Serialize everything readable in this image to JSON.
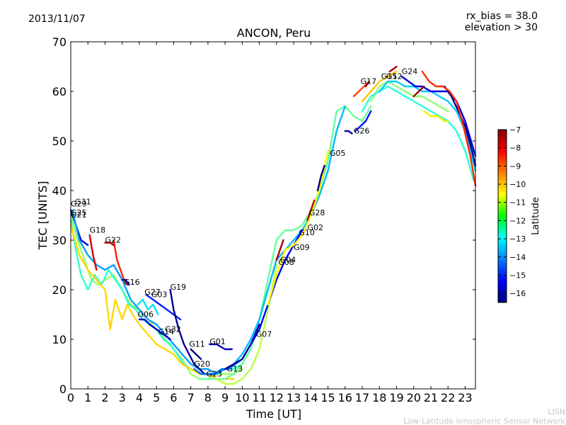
{
  "chart_data": {
    "type": "scatter",
    "title": "ANCON, Peru",
    "date": "2013/11/07",
    "info": [
      "rx_bias = 38.0",
      "elevation > 30"
    ],
    "xlabel": "Time [UT]",
    "ylabel": "TEC [UNITS]",
    "xlim": [
      0,
      23.6
    ],
    "ylim": [
      0,
      70
    ],
    "xticks": [
      0,
      1,
      2,
      3,
      4,
      5,
      6,
      7,
      8,
      9,
      10,
      11,
      12,
      13,
      14,
      15,
      16,
      17,
      18,
      19,
      20,
      21,
      22,
      23
    ],
    "yticks": [
      0,
      10,
      20,
      30,
      40,
      50,
      60,
      70
    ],
    "colorbar": {
      "label": "Latitude",
      "range": [
        -16.5,
        -7
      ],
      "ticks": [
        -7,
        -8,
        -9,
        -10,
        -11,
        -12,
        -13,
        -14,
        -15,
        -16
      ]
    },
    "satellite_labels": [
      {
        "name": "G31",
        "x": 0.25,
        "y": 37.2
      },
      {
        "name": "G29",
        "x": 0.0,
        "y": 36.8
      },
      {
        "name": "G25",
        "x": 0.0,
        "y": 35.0
      },
      {
        "name": "G21",
        "x": 0.0,
        "y": 34.6
      },
      {
        "name": "G18",
        "x": 1.1,
        "y": 31.5
      },
      {
        "name": "G22",
        "x": 2.0,
        "y": 29.5
      },
      {
        "name": "G16",
        "x": 3.1,
        "y": 21.0
      },
      {
        "name": "G27",
        "x": 4.3,
        "y": 19.0
      },
      {
        "name": "G03",
        "x": 4.7,
        "y": 18.5
      },
      {
        "name": "G19",
        "x": 5.8,
        "y": 20.0
      },
      {
        "name": "G06",
        "x": 3.9,
        "y": 14.5
      },
      {
        "name": "G14",
        "x": 5.1,
        "y": 11.0
      },
      {
        "name": "G32",
        "x": 5.5,
        "y": 11.5
      },
      {
        "name": "G11",
        "x": 6.9,
        "y": 8.5
      },
      {
        "name": "G01",
        "x": 8.1,
        "y": 9.0
      },
      {
        "name": "G20",
        "x": 7.2,
        "y": 4.5
      },
      {
        "name": "G23",
        "x": 7.9,
        "y": 2.5
      },
      {
        "name": "G13",
        "x": 9.1,
        "y": 3.5
      },
      {
        "name": "G07",
        "x": 10.8,
        "y": 10.5
      },
      {
        "name": "G04",
        "x": 12.2,
        "y": 25.5
      },
      {
        "name": "G08",
        "x": 12.1,
        "y": 25.0
      },
      {
        "name": "G09",
        "x": 13.0,
        "y": 28.0
      },
      {
        "name": "G10",
        "x": 13.3,
        "y": 31.0
      },
      {
        "name": "G02",
        "x": 13.8,
        "y": 32.0
      },
      {
        "name": "G28",
        "x": 13.9,
        "y": 35.0
      },
      {
        "name": "G05",
        "x": 15.1,
        "y": 47.0
      },
      {
        "name": "G26",
        "x": 16.5,
        "y": 51.5
      },
      {
        "name": "G17",
        "x": 16.9,
        "y": 61.5
      },
      {
        "name": "G15",
        "x": 18.1,
        "y": 62.5
      },
      {
        "name": "G12",
        "x": 18.4,
        "y": 62.5
      },
      {
        "name": "G24",
        "x": 19.3,
        "y": 63.5
      }
    ],
    "series": [
      {
        "name": "trace-01",
        "lat": -15.5,
        "x": [
          0.0,
          0.3,
          0.6,
          1.0
        ],
        "y": [
          36,
          33,
          30,
          29
        ]
      },
      {
        "name": "trace-02",
        "lat": -11.5,
        "x": [
          0.0,
          0.4,
          0.8,
          1.2,
          1.6,
          2.0,
          2.5,
          3.0,
          3.5,
          4.0,
          4.5,
          5.0,
          5.5,
          6.0,
          6.5,
          7.0,
          7.5,
          8.0,
          8.5,
          9.0,
          9.5,
          10.0
        ],
        "y": [
          35,
          30,
          26,
          22,
          21,
          22,
          23,
          20,
          17,
          16,
          14,
          12,
          10,
          8,
          6,
          3,
          2,
          2,
          3,
          3,
          3,
          4
        ]
      },
      {
        "name": "trace-03",
        "lat": -12.5,
        "x": [
          0.0,
          0.3,
          0.6,
          1.0,
          1.4,
          1.8,
          2.2,
          2.6,
          3.0,
          3.4,
          3.8,
          4.2,
          4.6,
          5.0,
          5.4,
          5.8,
          6.2,
          6.6,
          7.0,
          7.5,
          8.0,
          8.5,
          9.0,
          9.5,
          10.0
        ],
        "y": [
          34,
          28,
          23,
          20,
          23,
          21,
          24,
          22,
          20,
          17,
          16,
          14,
          13,
          12,
          10,
          9,
          7,
          5,
          4,
          3,
          3,
          3,
          4,
          4,
          5
        ]
      },
      {
        "name": "trace-04",
        "lat": -10.2,
        "x": [
          0.0,
          0.5,
          1.0,
          1.5,
          2.0,
          2.3,
          2.6,
          3.0,
          3.3,
          3.6,
          4.0,
          4.5,
          5.0,
          5.5,
          6.0,
          6.5,
          7.0,
          7.5,
          8.0,
          8.5,
          9.0,
          9.5
        ],
        "y": [
          33,
          27,
          24,
          22,
          20,
          12,
          18,
          14,
          17,
          15,
          13,
          11,
          9,
          8,
          7,
          5,
          4,
          3,
          3,
          2,
          2,
          2
        ]
      },
      {
        "name": "trace-05",
        "lat": -13.8,
        "x": [
          0.1,
          0.5,
          1.0,
          1.5,
          2.0,
          2.5,
          3.0,
          3.5,
          4.0,
          4.5,
          5.0,
          5.5,
          6.0,
          6.5,
          7.0,
          7.5,
          8.0,
          8.5,
          9.0,
          9.5,
          10.0
        ],
        "y": [
          36,
          30,
          27,
          25,
          24,
          25,
          22,
          18,
          16,
          14,
          13,
          11,
          9,
          7,
          5,
          4,
          4,
          3,
          4,
          5,
          6
        ]
      },
      {
        "name": "trace-06",
        "lat": -7.8,
        "x": [
          1.1,
          1.3,
          1.5
        ],
        "y": [
          31,
          27,
          24
        ]
      },
      {
        "name": "trace-07",
        "lat": -8.5,
        "x": [
          2.5,
          2.7,
          2.9,
          3.1,
          3.3
        ],
        "y": [
          30,
          26,
          24,
          22,
          21
        ]
      },
      {
        "name": "trace-08",
        "lat": -7.5,
        "x": [
          2.0,
          2.3,
          2.5
        ],
        "y": [
          29.5,
          29.5,
          29
        ]
      },
      {
        "name": "trace-09",
        "lat": -16.0,
        "x": [
          3.0,
          3.2,
          3.4
        ],
        "y": [
          22,
          22,
          21
        ]
      },
      {
        "name": "trace-10",
        "lat": -15.0,
        "x": [
          4.4,
          4.8,
          5.2,
          5.6,
          6.0,
          6.4
        ],
        "y": [
          19,
          18,
          17,
          16,
          15,
          14
        ]
      },
      {
        "name": "trace-11",
        "lat": -16.3,
        "x": [
          5.8,
          6.0,
          6.3,
          6.6,
          6.9,
          7.2,
          7.5,
          7.8,
          8.1
        ],
        "y": [
          20,
          16,
          12,
          9,
          7,
          5,
          4,
          3,
          3
        ]
      },
      {
        "name": "trace-12",
        "lat": -15.8,
        "x": [
          4.0,
          4.3,
          4.6,
          5.0,
          5.4,
          5.8
        ],
        "y": [
          14,
          14,
          13,
          12,
          11,
          10
        ]
      },
      {
        "name": "trace-13",
        "lat": -13.2,
        "x": [
          3.9,
          4.2,
          4.5,
          4.8,
          5.1
        ],
        "y": [
          17,
          18,
          16,
          17,
          15
        ]
      },
      {
        "name": "trace-14",
        "lat": -16.4,
        "x": [
          7.0,
          7.3,
          7.6
        ],
        "y": [
          8,
          7,
          6
        ]
      },
      {
        "name": "trace-15",
        "lat": -15.9,
        "x": [
          8.1,
          8.5,
          9.0,
          9.4
        ],
        "y": [
          9,
          9,
          8,
          8
        ]
      },
      {
        "name": "trace-16",
        "lat": -14.3,
        "x": [
          7.2,
          7.6,
          8.0,
          8.4,
          8.8,
          9.2,
          9.6,
          10.0
        ],
        "y": [
          4,
          3,
          3,
          3,
          4,
          4,
          5,
          6
        ]
      },
      {
        "name": "trace-17",
        "lat": -12.0,
        "x": [
          7.5,
          8.0,
          8.5,
          9.0,
          9.5,
          10.0,
          10.5,
          11.0,
          11.5,
          12.0,
          12.5,
          13.0,
          13.5,
          14.0,
          14.5,
          15.0,
          15.5,
          16.0,
          16.5,
          17.0,
          17.5
        ],
        "y": [
          2,
          2,
          2,
          2,
          3,
          5,
          8,
          14,
          22,
          30,
          32,
          32,
          33,
          36,
          40,
          46,
          56,
          57,
          55,
          54,
          57
        ]
      },
      {
        "name": "trace-18",
        "lat": -11.2,
        "x": [
          8.5,
          9.0,
          9.5,
          10.0,
          10.5,
          11.0,
          11.5,
          12.0
        ],
        "y": [
          2,
          1,
          1,
          2,
          4,
          8,
          16,
          25
        ]
      },
      {
        "name": "trace-19",
        "lat": -13.6,
        "x": [
          9.5,
          10.0,
          10.5,
          11.0,
          11.5,
          12.0,
          12.5,
          13.0,
          13.5,
          14.0,
          14.5,
          15.0,
          15.5,
          16.0
        ],
        "y": [
          5,
          7,
          10,
          14,
          20,
          26,
          28,
          30,
          32,
          35,
          39,
          44,
          52,
          57
        ]
      },
      {
        "name": "trace-20",
        "lat": -16.2,
        "x": [
          9.0,
          9.5,
          10.0,
          10.5,
          11.0
        ],
        "y": [
          4,
          5,
          6,
          9,
          13
        ]
      },
      {
        "name": "trace-21",
        "lat": -15.3,
        "x": [
          10.5,
          11.0,
          11.5,
          12.0,
          12.5,
          13.0,
          13.5
        ],
        "y": [
          9,
          12,
          17,
          22,
          26,
          29,
          32
        ]
      },
      {
        "name": "trace-22",
        "lat": -10.5,
        "x": [
          11.5,
          12.0,
          12.5,
          13.0,
          13.5,
          14.0,
          14.5,
          15.0
        ],
        "y": [
          17,
          23,
          28,
          29,
          31,
          35,
          40,
          48
        ]
      },
      {
        "name": "trace-23",
        "lat": -16.4,
        "x": [
          14.4,
          14.6,
          14.8
        ],
        "y": [
          40,
          43,
          45
        ]
      },
      {
        "name": "trace-24",
        "lat": -7.3,
        "x": [
          12.0,
          12.2,
          12.4
        ],
        "y": [
          26,
          28,
          30
        ]
      },
      {
        "name": "trace-25",
        "lat": -7.6,
        "x": [
          13.8,
          14.0,
          14.2
        ],
        "y": [
          34,
          36,
          38
        ]
      },
      {
        "name": "trace-26",
        "lat": -16.1,
        "x": [
          16.0,
          16.2,
          16.4
        ],
        "y": [
          52,
          52,
          51.5
        ]
      },
      {
        "name": "trace-27",
        "lat": -15.2,
        "x": [
          16.6,
          16.9,
          17.2,
          17.5
        ],
        "y": [
          52,
          53,
          54,
          56
        ]
      },
      {
        "name": "trace-28",
        "lat": -8.8,
        "x": [
          16.5,
          16.8,
          17.1,
          17.4
        ],
        "y": [
          59,
          60,
          61,
          62
        ]
      },
      {
        "name": "trace-29",
        "lat": -7.2,
        "x": [
          17.2,
          17.4
        ],
        "y": [
          61,
          62
        ]
      },
      {
        "name": "trace-30",
        "lat": -10.0,
        "x": [
          17.0,
          17.5,
          18.0,
          18.5,
          19.0
        ],
        "y": [
          58,
          60,
          62,
          63,
          64
        ]
      },
      {
        "name": "trace-31",
        "lat": -7.4,
        "x": [
          18.6,
          18.8,
          19.0
        ],
        "y": [
          64,
          64.5,
          65
        ]
      },
      {
        "name": "trace-32",
        "lat": -11.6,
        "x": [
          17.5,
          18.0,
          18.5,
          19.0,
          19.5,
          20.0,
          20.5,
          21.0,
          21.5,
          22.0
        ],
        "y": [
          58,
          61,
          62,
          61,
          60,
          59,
          59,
          58,
          57,
          56
        ]
      },
      {
        "name": "trace-33",
        "lat": -12.6,
        "x": [
          17.0,
          17.5,
          18.0,
          18.5,
          19.0,
          19.5,
          20.0,
          20.5,
          21.0,
          21.5,
          22.0,
          22.5,
          23.0,
          23.5
        ],
        "y": [
          56,
          59,
          60,
          61,
          60,
          59,
          58,
          57,
          56,
          55,
          54,
          52,
          48,
          42
        ]
      },
      {
        "name": "trace-34",
        "lat": -13.4,
        "x": [
          18.0,
          18.5,
          19.0,
          19.5,
          20.0,
          20.5,
          21.0,
          21.5,
          22.0,
          22.5,
          23.0,
          23.6
        ],
        "y": [
          60,
          62,
          62,
          61,
          61,
          60,
          60,
          59,
          58,
          56,
          52,
          44
        ]
      },
      {
        "name": "trace-35",
        "lat": -15.6,
        "x": [
          19.3,
          19.7,
          20.1,
          20.5,
          21.0,
          21.5,
          22.0,
          22.5,
          23.0,
          23.6
        ],
        "y": [
          63,
          62,
          61,
          61,
          60,
          60,
          60,
          58,
          54,
          47
        ]
      },
      {
        "name": "trace-36",
        "lat": -16.3,
        "x": [
          21.8,
          22.2,
          22.6,
          23.0,
          23.4,
          23.6
        ],
        "y": [
          61,
          59,
          56,
          53,
          48,
          45
        ]
      },
      {
        "name": "trace-37",
        "lat": -8.6,
        "x": [
          20.5,
          20.9,
          21.3,
          21.7,
          22.1,
          22.5,
          22.9,
          23.3,
          23.6
        ],
        "y": [
          64,
          62,
          61,
          61,
          60,
          58,
          53,
          47,
          41
        ]
      },
      {
        "name": "trace-38",
        "lat": -10.4,
        "x": [
          20.6,
          21.0,
          21.4,
          21.8,
          22.0
        ],
        "y": [
          56,
          55,
          55,
          54,
          54
        ]
      },
      {
        "name": "trace-39",
        "lat": -7.3,
        "x": [
          20.0,
          20.3,
          20.6
        ],
        "y": [
          59,
          60,
          61
        ]
      }
    ]
  },
  "footer": {
    "line1": "LISN",
    "line2": "Low-Latitude Ionospheric Sensor Network"
  }
}
